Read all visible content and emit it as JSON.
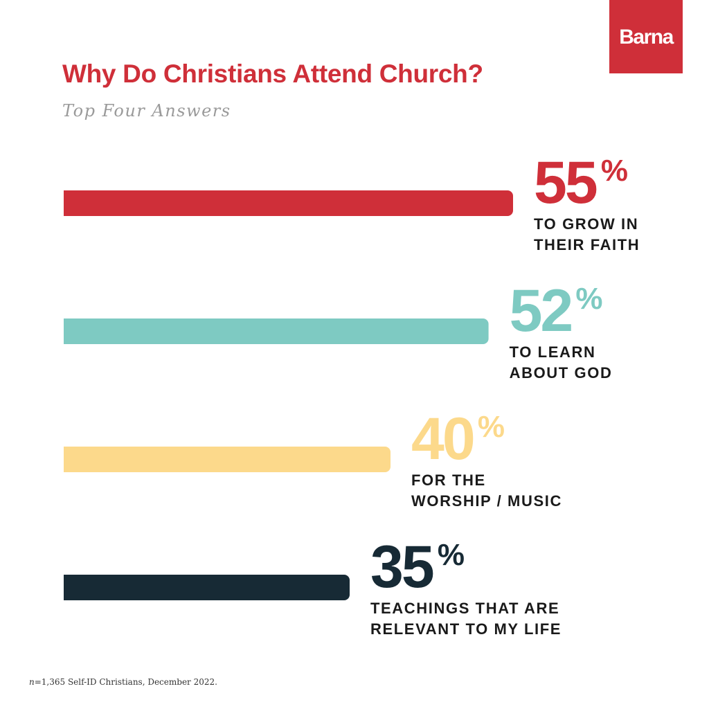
{
  "brand": {
    "logo_text": "Barna",
    "color": "#cf2f39"
  },
  "title": "Why Do Christians Attend Church?",
  "subtitle": "Top Four Answers",
  "footnote": {
    "n_label": "n",
    "text": "=1,365 Self-ID Christians, December 2022."
  },
  "chart_data": {
    "type": "bar",
    "orientation": "horizontal",
    "unit": "%",
    "grid": false,
    "title": "Why Do Christians Attend Church?",
    "subtitle": "Top Four Answers",
    "categories": [
      [
        "TO GROW IN",
        "THEIR FAITH"
      ],
      [
        "TO LEARN",
        "ABOUT GOD"
      ],
      [
        "FOR THE",
        "WORSHIP / MUSIC"
      ],
      [
        "TEACHINGS THAT ARE",
        "RELEVANT TO MY LIFE"
      ]
    ],
    "values": [
      55,
      52,
      40,
      35
    ],
    "value_labels": [
      "55",
      "52",
      "40",
      "35"
    ],
    "colors": [
      "#cf2f39",
      "#7ecac2",
      "#fcd98b",
      "#172a35"
    ]
  }
}
